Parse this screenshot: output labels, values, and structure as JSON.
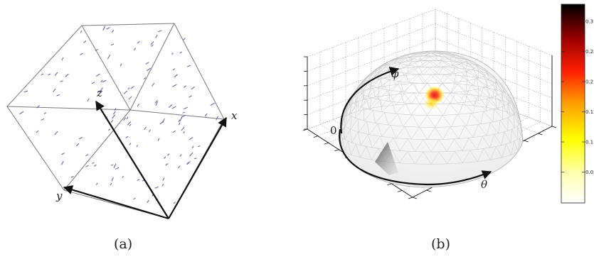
{
  "panel_a": {
    "caption": "(a)",
    "axis_x": "x",
    "axis_y": "y",
    "axis_z": "z"
  },
  "panel_b": {
    "caption": "(b)",
    "label_phi": "φ",
    "label_theta": "θ",
    "label_zero": "0",
    "colorbar_ticks": [
      "0.3",
      "0.25",
      "0.2",
      "0.15",
      "0.1",
      "0.05"
    ]
  },
  "colors": {
    "stick": "#5a5aa8",
    "cube_edge": "#7a7a7a",
    "arrow": "#111111"
  }
}
